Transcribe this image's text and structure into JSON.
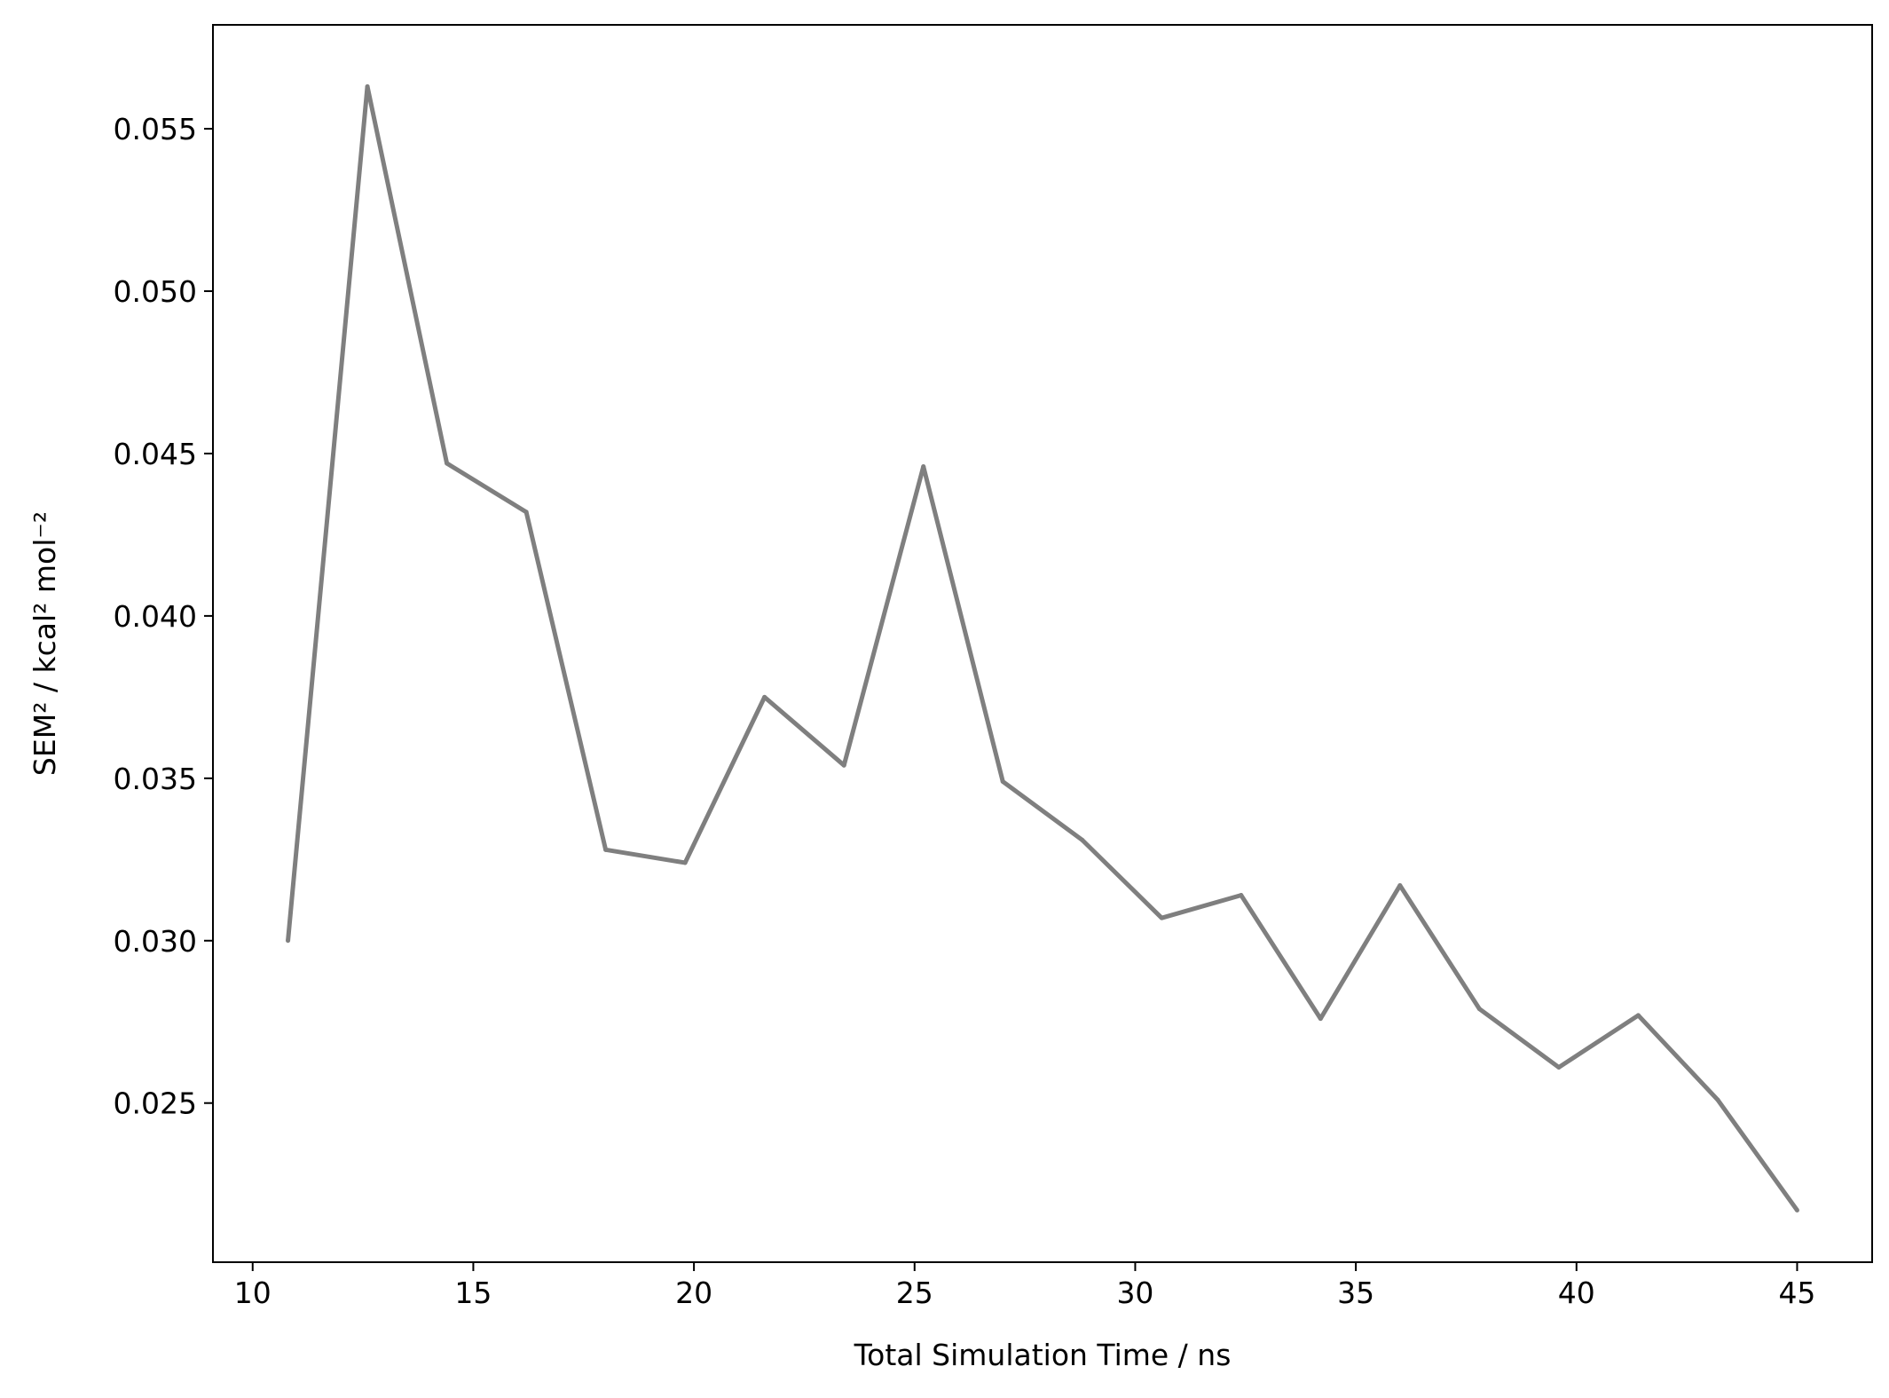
{
  "chart_data": {
    "type": "line",
    "title": "",
    "xlabel": "Total Simulation Time / ns",
    "ylabel": "SEM² / kcal² mol⁻²",
    "xlim": [
      9.1,
      46.7
    ],
    "ylim": [
      0.0201,
      0.0582
    ],
    "grid": false,
    "legend": "none",
    "x_ticks": [
      10,
      15,
      20,
      25,
      30,
      35,
      40,
      45
    ],
    "x_tick_labels": [
      "10",
      "15",
      "20",
      "25",
      "30",
      "35",
      "40",
      "45"
    ],
    "y_ticks": [
      0.025,
      0.03,
      0.035,
      0.04,
      0.045,
      0.05,
      0.055
    ],
    "y_tick_labels": [
      "0.025",
      "0.030",
      "0.035",
      "0.040",
      "0.045",
      "0.050",
      "0.055"
    ],
    "series": [
      {
        "color": "#7f7f7f",
        "x": [
          10.8,
          12.6,
          14.4,
          16.2,
          18.0,
          19.8,
          21.6,
          23.4,
          25.2,
          27.0,
          28.8,
          30.6,
          32.4,
          34.2,
          36.0,
          37.8,
          39.6,
          41.4,
          43.2,
          45.0
        ],
        "values": [
          0.03,
          0.0563,
          0.0447,
          0.0432,
          0.0328,
          0.0324,
          0.0375,
          0.0354,
          0.0446,
          0.0349,
          0.0331,
          0.0307,
          0.0314,
          0.0276,
          0.0317,
          0.0279,
          0.0261,
          0.0277,
          0.0251,
          0.0217
        ]
      }
    ]
  }
}
